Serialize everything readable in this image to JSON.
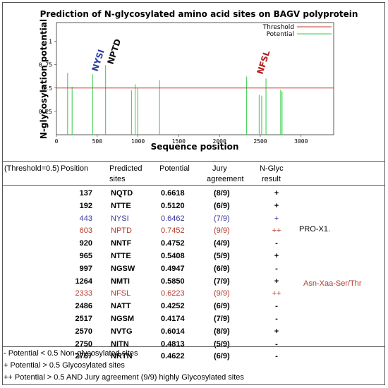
{
  "chart_data": {
    "type": "bar",
    "title": "Prediction of N-glycosylated amino acid sites on BAGV polyprotein",
    "xlabel": "Sequence position",
    "ylabel": "N-glycosylation potential",
    "xlim": [
      0,
      3400
    ],
    "ylim": [
      0,
      1.2
    ],
    "xticks": [
      0,
      500,
      1000,
      1500,
      2000,
      2500,
      3000
    ],
    "yticks": [
      0.25,
      0.5,
      0.75,
      1
    ],
    "threshold": 0.5,
    "legend": {
      "position": "top-right",
      "entries": [
        "Threshold",
        "Potential"
      ]
    },
    "colors": {
      "threshold": "#c0392b",
      "potential": "#2ecc40",
      "annotation_blue": "#2a3da0",
      "annotation_red": "#b01c1c"
    },
    "series": [
      {
        "name": "Potential",
        "x": [
          137,
          192,
          443,
          603,
          920,
          965,
          997,
          1264,
          2333,
          2486,
          2517,
          2570,
          2750,
          2767
        ],
        "values": [
          0.6618,
          0.512,
          0.6462,
          0.7452,
          0.4752,
          0.5408,
          0.4947,
          0.585,
          0.6223,
          0.4252,
          0.4174,
          0.6014,
          0.4813,
          0.4622
        ]
      }
    ],
    "annotations": [
      {
        "text": "NYSI",
        "x": 443,
        "color": "blue"
      },
      {
        "text": "NPTD",
        "x": 603,
        "color": "black"
      },
      {
        "text": "NFSL",
        "x": 2333,
        "color": "red"
      }
    ]
  },
  "table": {
    "headers": {
      "threshold": "(Threshold=0.5)",
      "position": "Position",
      "predicted": "Predicted",
      "sites": "sites",
      "potential": "Potential",
      "jury": "Jury",
      "agreement": "agreement",
      "nglyc": "N-Glyc",
      "result": "result"
    },
    "rows": [
      {
        "position": "137",
        "site": "NQTD",
        "potential": "0.6618",
        "jury": "(8/9)",
        "result": "+"
      },
      {
        "position": "192",
        "site": "NTTE",
        "potential": "0.5120",
        "jury": "(6/9)",
        "result": "+"
      },
      {
        "position": "443",
        "site": "NYSI",
        "potential": "0.6462",
        "jury": "(7/9)",
        "result": "+"
      },
      {
        "position": "603",
        "site": "NPTD",
        "potential": "0.7452",
        "jury": "(9/9)",
        "result": "++"
      },
      {
        "position": "920",
        "site": "NNTF",
        "potential": "0.4752",
        "jury": "(4/9)",
        "result": "-"
      },
      {
        "position": "965",
        "site": "NTTE",
        "potential": "0.5408",
        "jury": "(5/9)",
        "result": "+"
      },
      {
        "position": "997",
        "site": "NGSW",
        "potential": "0.4947",
        "jury": "(6/9)",
        "result": "-"
      },
      {
        "position": "1264",
        "site": "NMTI",
        "potential": "0.5850",
        "jury": "(7/9)",
        "result": "+"
      },
      {
        "position": "2333",
        "site": "NFSL",
        "potential": "0.6223",
        "jury": "(9/9)",
        "result": "++"
      },
      {
        "position": "2486",
        "site": "NATT",
        "potential": "0.4252",
        "jury": "(6/9)",
        "result": "-"
      },
      {
        "position": "2517",
        "site": "NGSM",
        "potential": "0.4174",
        "jury": "(7/9)",
        "result": "-"
      },
      {
        "position": "2570",
        "site": "NVTG",
        "potential": "0.6014",
        "jury": "(8/9)",
        "result": "+"
      },
      {
        "position": "2750",
        "site": "NITN",
        "potential": "0.4813",
        "jury": "(5/9)",
        "result": "-"
      },
      {
        "position": "2767",
        "site": "NRTN",
        "potential": "0.4622",
        "jury": "(6/9)",
        "result": "-"
      }
    ],
    "notes": {
      "pro": "PRO-X1.",
      "motif": "Asn-Xaa-Ser/Thr"
    }
  },
  "footnotes": {
    "minus": "- Potential < 0.5   Non-glycosylated sites",
    "plus": "+ Potential > 0.5   Glycosylated sites",
    "plusplus": "++ Potential > 0.5 AND Jury agreement (9/9) highly Glycosylated sites"
  }
}
